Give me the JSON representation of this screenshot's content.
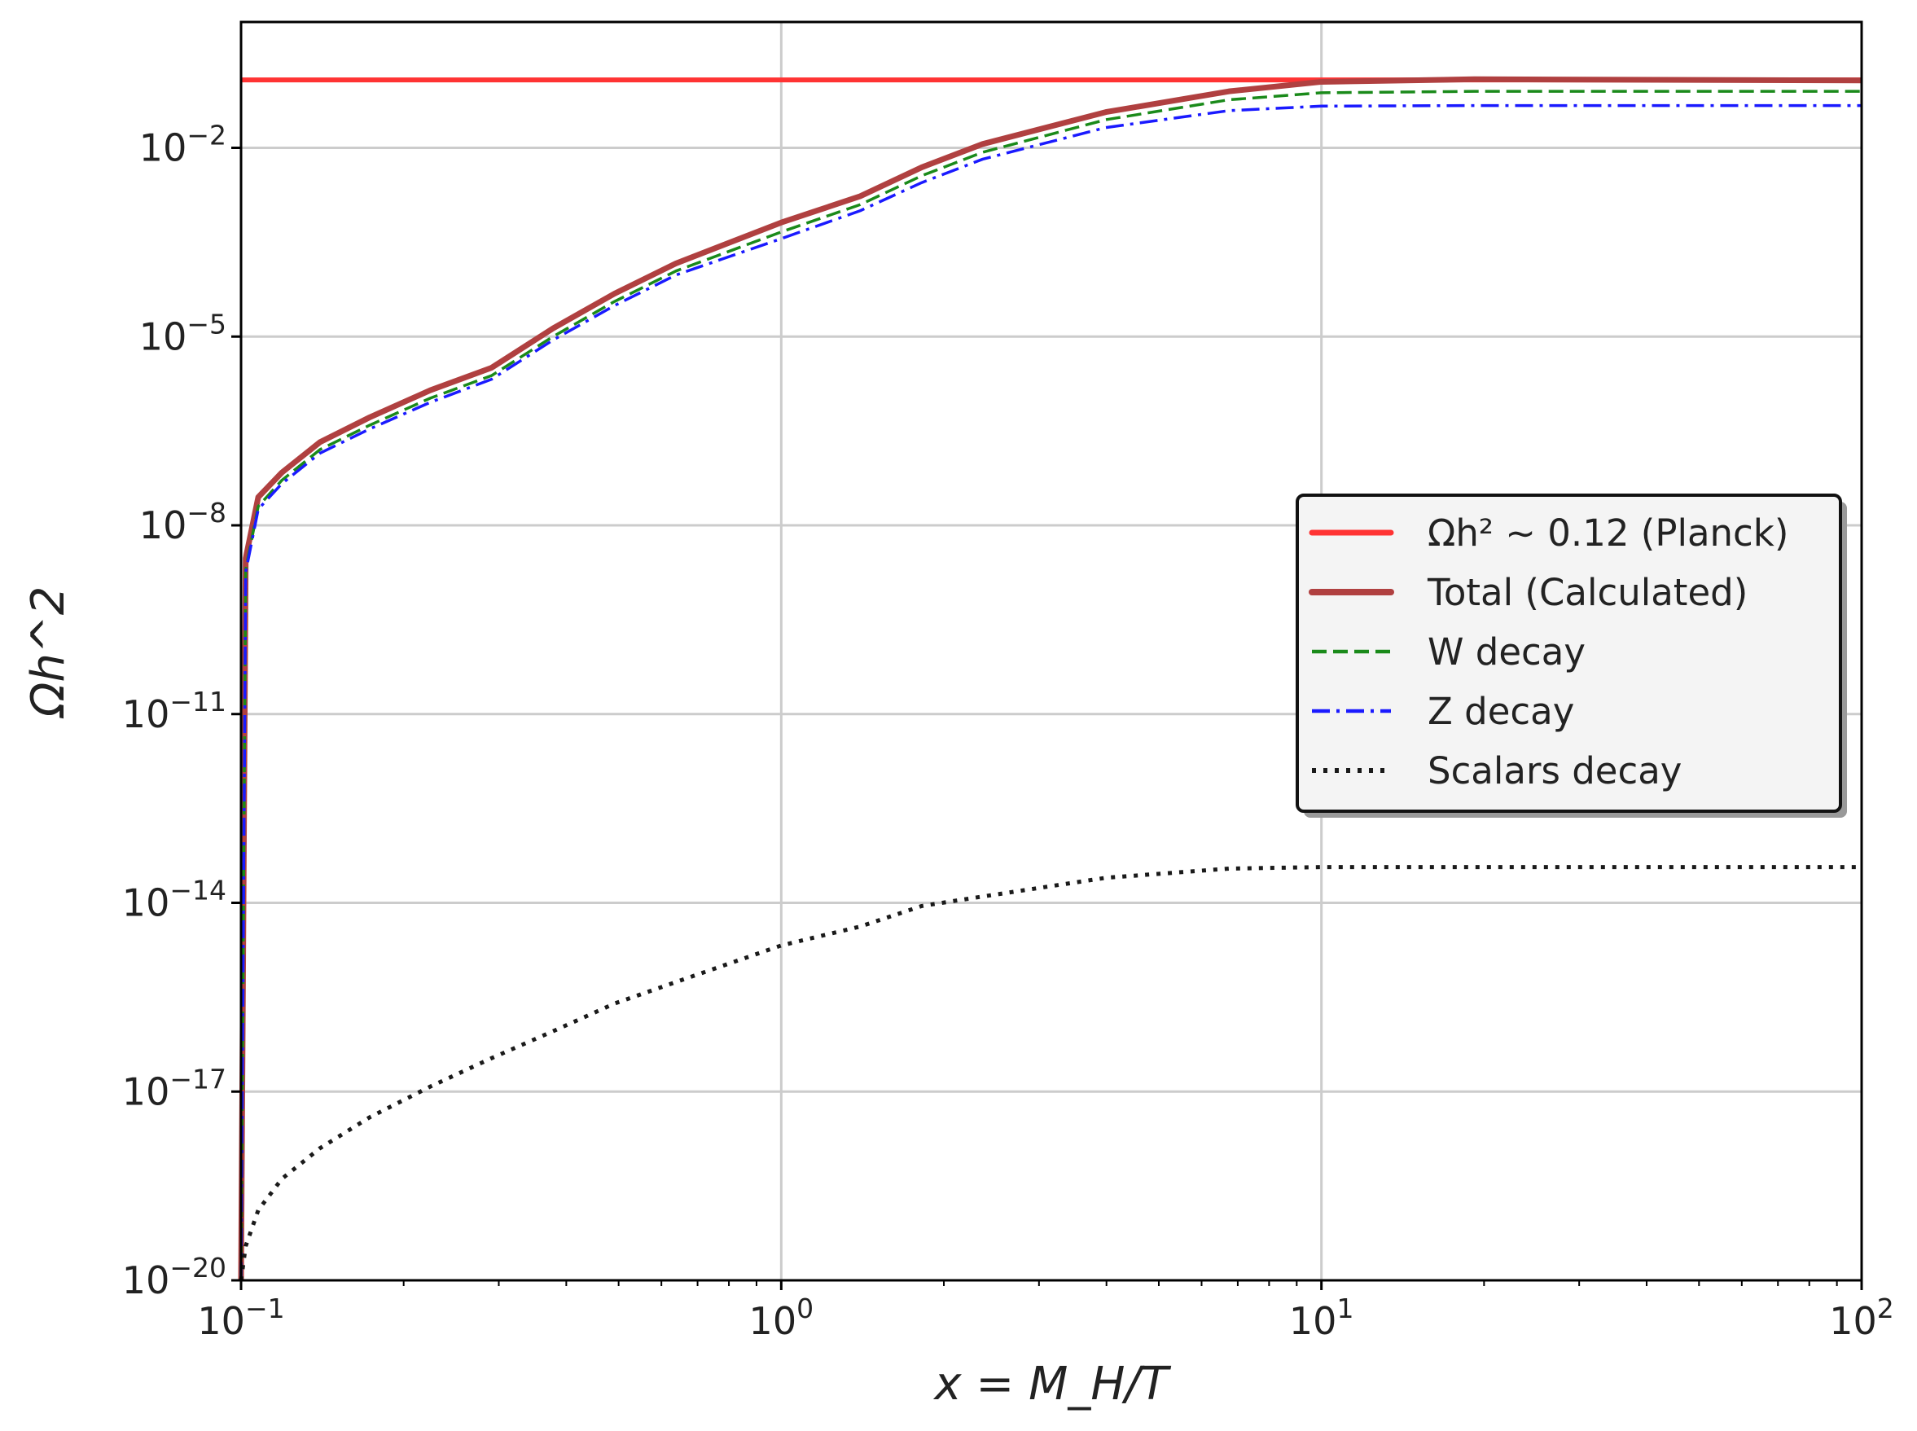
{
  "chart_data": {
    "type": "line",
    "title": "",
    "xlabel": "x = M_H/T",
    "ylabel": "Ωh^2",
    "xscale": "log",
    "yscale": "log",
    "xlim": [
      0.1,
      100
    ],
    "ylim": [
      1e-20,
      1
    ],
    "grid": true,
    "legend_position": "center-right",
    "x_ticks": [
      {
        "base": "10",
        "exp": "−1",
        "value": 0.1
      },
      {
        "base": "10",
        "exp": "0",
        "value": 1
      },
      {
        "base": "10",
        "exp": "1",
        "value": 10
      },
      {
        "base": "10",
        "exp": "2",
        "value": 100
      }
    ],
    "y_ticks": [
      {
        "base": "10",
        "exp": "−2",
        "value": 0.01
      },
      {
        "base": "10",
        "exp": "−5",
        "value": 1e-05
      },
      {
        "base": "10",
        "exp": "−8",
        "value": 1e-08
      },
      {
        "base": "10",
        "exp": "−11",
        "value": 1e-11
      },
      {
        "base": "10",
        "exp": "−14",
        "value": 1e-14
      },
      {
        "base": "10",
        "exp": "−17",
        "value": 1e-17
      },
      {
        "base": "10",
        "exp": "−20",
        "value": 1e-20
      }
    ],
    "x": [
      0.1,
      0.102,
      0.1076,
      0.119,
      0.14,
      0.173,
      0.224,
      0.291,
      0.378,
      0.491,
      0.638,
      1.0,
      1.4,
      1.82,
      2.36,
      3.99,
      6.74,
      10,
      19.2,
      100
    ],
    "series": [
      {
        "name": "Ωh² ∼ 0.12 (Planck)",
        "color": "#ff3333",
        "style": "solid",
        "const": 0.12
      },
      {
        "name": "Total (Calculated)",
        "color": "#b04040",
        "style": "solid",
        "values": [
          1e-20,
          3e-09,
          2.8e-08,
          6.9e-08,
          2.1e-07,
          5.2e-07,
          1.4e-06,
          3.2e-06,
          1.35e-05,
          4.8e-05,
          0.000145,
          0.00065,
          0.0017,
          0.0049,
          0.0115,
          0.037,
          0.079,
          0.112,
          0.123,
          0.118
        ]
      },
      {
        "name": "W decay",
        "color": "#1a8a1a",
        "style": "dashed",
        "values": [
          1e-20,
          2e-09,
          2e-08,
          5.2e-08,
          1.6e-07,
          3.9e-07,
          1.05e-06,
          2.4e-06,
          1e-05,
          3.6e-05,
          0.00011,
          0.00046,
          0.00125,
          0.0036,
          0.0085,
          0.028,
          0.058,
          0.075,
          0.079,
          0.079
        ]
      },
      {
        "name": "Z decay",
        "color": "#1a1aff",
        "style": "dashdot",
        "values": [
          1e-20,
          1.8e-09,
          1.8e-08,
          4.6e-08,
          1.4e-07,
          3.4e-07,
          9e-07,
          2.1e-06,
          8.8e-06,
          3.1e-05,
          9.5e-05,
          0.00036,
          0.001,
          0.0028,
          0.0066,
          0.021,
          0.039,
          0.046,
          0.047,
          0.047
        ]
      },
      {
        "name": "Scalars decay",
        "color": "#1a1a1a",
        "style": "dotted",
        "values": [
          1e-20,
          3.5e-20,
          1.3e-19,
          4.1e-19,
          1.26e-18,
          3.9e-18,
          1.2e-17,
          3.4e-17,
          9.1e-17,
          2.5e-16,
          5.5e-16,
          2.1e-15,
          4.2e-15,
          8.9e-15,
          1.26e-14,
          2.5e-14,
          3.5e-14,
          3.7e-14,
          3.7e-14,
          3.7e-14
        ]
      }
    ]
  }
}
